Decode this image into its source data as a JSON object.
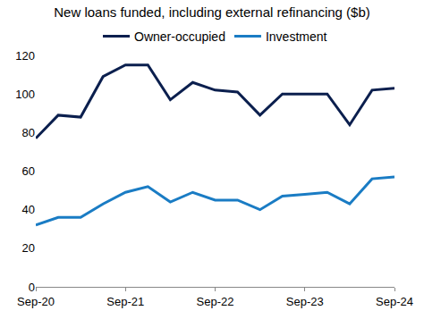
{
  "chart_data": {
    "type": "line",
    "title": "New loans funded, including external refinancing ($b)",
    "categories": [
      "Sep-20",
      null,
      null,
      null,
      "Sep-21",
      null,
      null,
      null,
      "Sep-22",
      null,
      null,
      null,
      "Sep-23",
      null,
      null,
      null,
      "Sep-24"
    ],
    "series": [
      {
        "name": "Owner-occupied",
        "color": "#0b1f4e",
        "values": [
          77,
          89,
          88,
          109,
          115,
          115,
          97,
          106,
          102,
          101,
          89,
          100,
          100,
          100,
          84,
          102,
          103
        ]
      },
      {
        "name": "Investment",
        "color": "#1a7cc4",
        "values": [
          32,
          36,
          36,
          43,
          49,
          52,
          44,
          49,
          45,
          45,
          40,
          47,
          48,
          49,
          43,
          56,
          57
        ]
      }
    ],
    "ylim": [
      0,
      120
    ],
    "yticks": [
      0,
      20,
      40,
      60,
      80,
      100,
      120
    ],
    "grid": false,
    "legend": "top"
  }
}
